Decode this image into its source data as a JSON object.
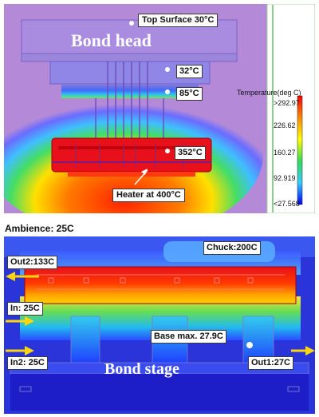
{
  "top_panel": {
    "title": "Bond head",
    "labels": {
      "top_surface": "Top Surface 30°C",
      "t32": "32°C",
      "t85": "85°C",
      "t352": "352°C",
      "heater": "Heater at 400°C"
    },
    "colorbar": {
      "title": "Temperature(deg C)",
      "ticks": [
        ">292.97",
        "226.62",
        "160.27",
        "92.919",
        "<27.568"
      ],
      "colors": [
        "#ff0000",
        "#ff8800",
        "#ffff00",
        "#33dd55",
        "#33ccff",
        "#0000ff"
      ]
    }
  },
  "bottom_panel": {
    "ambience": "Ambience: 25C",
    "title": "Bond stage",
    "labels": {
      "chuck": "Chuck:200C",
      "out2": "Out2:133C",
      "in1": "In: 25C",
      "base_max": "Base max. 27.9C",
      "in2": "In2: 25C",
      "out1": "Out1:27C"
    }
  },
  "colors": {
    "background_purple": "#b48ad8",
    "hot": "#e8101a",
    "warm": "#ffb000",
    "cool": "#33cc66",
    "cold": "#1f6bff",
    "stage_blue": "#1e1ec8",
    "arrow_yellow": "#ffd60a"
  }
}
